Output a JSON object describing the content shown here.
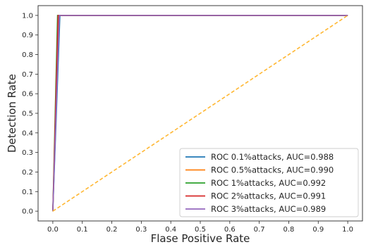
{
  "chart_data": {
    "type": "line",
    "title": "",
    "xlabel": "Flase Positive Rate",
    "ylabel": "Detection Rate",
    "xlim": [
      -0.05,
      1.05
    ],
    "ylim": [
      -0.05,
      1.05
    ],
    "xticks": [
      "0.0",
      "0.1",
      "0.2",
      "0.3",
      "0.4",
      "0.5",
      "0.6",
      "0.7",
      "0.8",
      "0.9",
      "1.0"
    ],
    "yticks": [
      "0.0",
      "0.1",
      "0.2",
      "0.3",
      "0.4",
      "0.5",
      "0.6",
      "0.7",
      "0.8",
      "0.9",
      "1.0"
    ],
    "grid": false,
    "legend_position": "lower-right",
    "series": [
      {
        "name": "ROC 0.1%attacks, AUC=0.988",
        "color": "#1f77b4",
        "x": [
          0.0,
          0.024,
          1.0
        ],
        "y": [
          0.0,
          1.0,
          1.0
        ]
      },
      {
        "name": "ROC 0.5%attacks, AUC=0.990",
        "color": "#ff7f0e",
        "x": [
          0.0,
          0.02,
          1.0
        ],
        "y": [
          0.0,
          1.0,
          1.0
        ]
      },
      {
        "name": "ROC 1%attacks, AUC=0.992",
        "color": "#2ca02c",
        "x": [
          0.0,
          0.016,
          1.0
        ],
        "y": [
          0.0,
          1.0,
          1.0
        ]
      },
      {
        "name": "ROC 2%attacks, AUC=0.991",
        "color": "#d62728",
        "x": [
          0.0,
          0.018,
          1.0
        ],
        "y": [
          0.0,
          1.0,
          1.0
        ]
      },
      {
        "name": "ROC 3%attacks, AUC=0.989",
        "color": "#9467bd",
        "x": [
          0.0,
          0.022,
          1.0
        ],
        "y": [
          0.0,
          1.0,
          1.0
        ]
      }
    ],
    "reference_line": {
      "color": "#ffb732",
      "style": "dashed",
      "x": [
        0.0,
        1.0
      ],
      "y": [
        0.0,
        1.0
      ]
    }
  }
}
